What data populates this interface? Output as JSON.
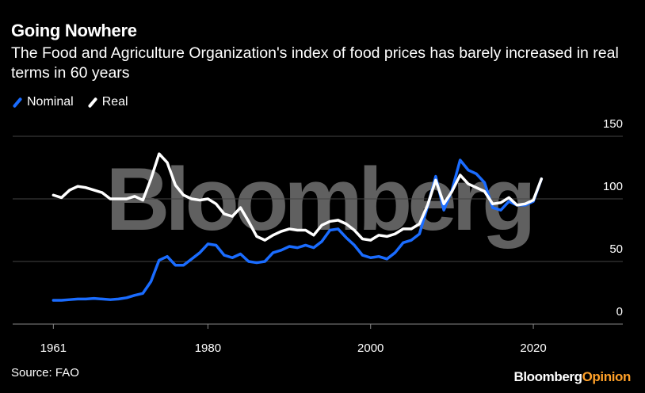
{
  "title": "Going Nowhere",
  "subtitle": "The Food and Agriculture Organization's index of food prices has barely increased in real terms in 60 years",
  "source": "Source: FAO",
  "brand": {
    "part1": "Bloomberg",
    "part2": "Opinion"
  },
  "watermark": "Bloomberg",
  "colors": {
    "nominal": "#1a6cff",
    "real": "#ffffff",
    "background": "#000000",
    "grid": "#444444",
    "watermark": "#808080",
    "brand_accent": "#ffa028"
  },
  "chart_data": {
    "type": "line",
    "title": "Going Nowhere",
    "xlabel": "",
    "ylabel": "",
    "xlim": [
      1961,
      2021
    ],
    "ylim": [
      0,
      150
    ],
    "yticks": [
      0,
      50,
      100,
      150
    ],
    "xticks": [
      1961,
      1980,
      2000,
      2020
    ],
    "grid": true,
    "legend_position": "top-left",
    "x": [
      1961,
      1962,
      1963,
      1964,
      1965,
      1966,
      1967,
      1968,
      1969,
      1970,
      1971,
      1972,
      1973,
      1974,
      1975,
      1976,
      1977,
      1978,
      1979,
      1980,
      1981,
      1982,
      1983,
      1984,
      1985,
      1986,
      1987,
      1988,
      1989,
      1990,
      1991,
      1992,
      1993,
      1994,
      1995,
      1996,
      1997,
      1998,
      1999,
      2000,
      2001,
      2002,
      2003,
      2004,
      2005,
      2006,
      2007,
      2008,
      2009,
      2010,
      2011,
      2012,
      2013,
      2014,
      2015,
      2016,
      2017,
      2018,
      2019,
      2020,
      2021
    ],
    "series": [
      {
        "name": "Nominal",
        "values": [
          19,
          19,
          19.5,
          20,
          20,
          20.5,
          20,
          19.5,
          20,
          21,
          23,
          24.5,
          34,
          51,
          54,
          47,
          47,
          52,
          57,
          64,
          63,
          55,
          53,
          56,
          50,
          49,
          50,
          57,
          59,
          62,
          61,
          63,
          61,
          66,
          75,
          76,
          69,
          63,
          55,
          53,
          54,
          52,
          57,
          65,
          67,
          72,
          94,
          118,
          91,
          107,
          131,
          123,
          120,
          113,
          93,
          91,
          98,
          95,
          95,
          98,
          116
        ]
      },
      {
        "name": "Real",
        "values": [
          103,
          101,
          107,
          110,
          109,
          107,
          105,
          100,
          100,
          100,
          102,
          99,
          116,
          136,
          129,
          111,
          103,
          100,
          99,
          100,
          96,
          88,
          86,
          93,
          82,
          70,
          67,
          71,
          74,
          76,
          75,
          75,
          71,
          79,
          82,
          83,
          80,
          75,
          68,
          67,
          71,
          70,
          72,
          76,
          76,
          80,
          95,
          115,
          96,
          106,
          119,
          112,
          109,
          106,
          96,
          97,
          101,
          95,
          96,
          99,
          116
        ]
      }
    ]
  }
}
